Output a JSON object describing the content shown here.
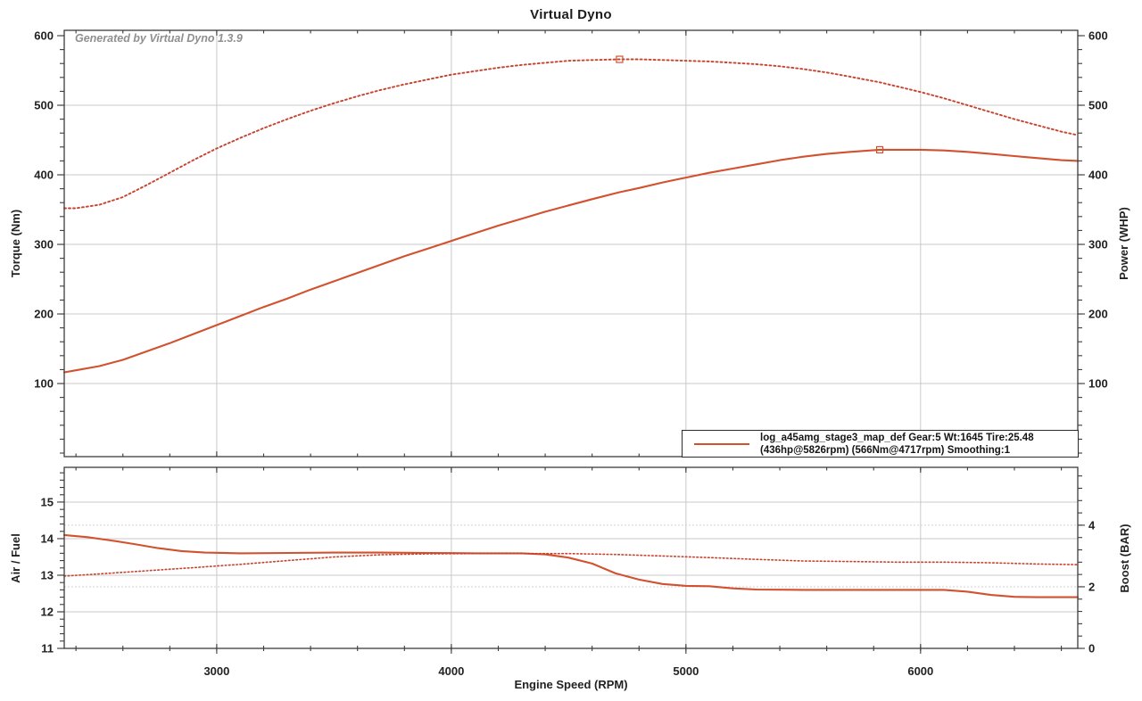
{
  "page": {
    "title": "Virtual Dyno",
    "watermark": "Generated by Virtual Dyno 1.3.9"
  },
  "legend": {
    "line1": "log_a45amg_stage3_map_def Gear:5 Wt:1645 Tire:25.48",
    "line2": "(436hp@5826rpm) (566Nm@4717rpm) Smoothing:1"
  },
  "colors": {
    "solid_line": "#d2512f",
    "dotted_line": "#c8432f",
    "grid": "#c8c8c8",
    "grid_dotted": "#d2d2d2",
    "axis": "#3c3c3c",
    "text": "#222222",
    "watermark": "#8f8f92"
  },
  "chart_data": [
    {
      "type": "line",
      "title": "Virtual Dyno",
      "grid": true,
      "legend_position": "bottom-right-inside",
      "x_axis": {
        "label": "Engine Speed (RPM)",
        "range": [
          2350,
          6670
        ],
        "major_ticks": [
          3000,
          4000,
          5000,
          6000
        ],
        "minor_step": 200
      },
      "y_left": {
        "label": "Torque (Nm)",
        "range": [
          -5.1,
          607.7
        ],
        "major_ticks": [
          100,
          200,
          300,
          400,
          500,
          600
        ],
        "grid_ticks": [
          100,
          200,
          300,
          400,
          500
        ],
        "minor_step": 20
      },
      "y_right": {
        "label": "Power (WHP)",
        "range": [
          -5.1,
          607.7
        ],
        "major_ticks": [
          100,
          200,
          300,
          400,
          500,
          600
        ],
        "minor_step": 20
      },
      "series": [
        {
          "name": "torque-nm",
          "axis": "left",
          "style": "dotted",
          "peak": {
            "rpm": 4717,
            "value": 566,
            "label": "566Nm@4717rpm"
          },
          "points": [
            [
              2350,
              352
            ],
            [
              2400,
              352
            ],
            [
              2500,
              357
            ],
            [
              2600,
              368
            ],
            [
              2700,
              385
            ],
            [
              2800,
              403
            ],
            [
              2900,
              421
            ],
            [
              3000,
              438
            ],
            [
              3100,
              453
            ],
            [
              3200,
              467
            ],
            [
              3300,
              480
            ],
            [
              3400,
              492
            ],
            [
              3500,
              503
            ],
            [
              3600,
              513
            ],
            [
              3700,
              522
            ],
            [
              3800,
              530
            ],
            [
              3900,
              537
            ],
            [
              4000,
              544
            ],
            [
              4100,
              549
            ],
            [
              4200,
              554
            ],
            [
              4300,
              558
            ],
            [
              4400,
              561
            ],
            [
              4500,
              564
            ],
            [
              4600,
              565
            ],
            [
              4717,
              566
            ],
            [
              4800,
              566
            ],
            [
              4900,
              565
            ],
            [
              5000,
              564
            ],
            [
              5100,
              563
            ],
            [
              5200,
              561
            ],
            [
              5300,
              559
            ],
            [
              5400,
              556
            ],
            [
              5500,
              552
            ],
            [
              5600,
              547
            ],
            [
              5700,
              541
            ],
            [
              5826,
              533
            ],
            [
              5900,
              527
            ],
            [
              6000,
              519
            ],
            [
              6100,
              510
            ],
            [
              6200,
              500
            ],
            [
              6300,
              490
            ],
            [
              6400,
              480
            ],
            [
              6500,
              471
            ],
            [
              6600,
              462
            ],
            [
              6670,
              457
            ]
          ]
        },
        {
          "name": "power-whp",
          "axis": "right",
          "style": "solid",
          "peak": {
            "rpm": 5826,
            "value": 436,
            "label": "436hp@5826rpm"
          },
          "points": [
            [
              2350,
              116
            ],
            [
              2400,
              119
            ],
            [
              2500,
              125
            ],
            [
              2600,
              134
            ],
            [
              2700,
              146
            ],
            [
              2800,
              158
            ],
            [
              2900,
              171
            ],
            [
              3000,
              184
            ],
            [
              3100,
              197
            ],
            [
              3200,
              210
            ],
            [
              3300,
              222
            ],
            [
              3400,
              235
            ],
            [
              3500,
              247
            ],
            [
              3600,
              259
            ],
            [
              3700,
              271
            ],
            [
              3800,
              283
            ],
            [
              3900,
              294
            ],
            [
              4000,
              305
            ],
            [
              4100,
              316
            ],
            [
              4200,
              327
            ],
            [
              4300,
              337
            ],
            [
              4400,
              347
            ],
            [
              4500,
              356
            ],
            [
              4600,
              365
            ],
            [
              4717,
              375
            ],
            [
              4800,
              381
            ],
            [
              4900,
              389
            ],
            [
              5000,
              396
            ],
            [
              5100,
              403
            ],
            [
              5200,
              409
            ],
            [
              5300,
              415
            ],
            [
              5400,
              421
            ],
            [
              5500,
              426
            ],
            [
              5600,
              430
            ],
            [
              5700,
              433
            ],
            [
              5826,
              436
            ],
            [
              5900,
              436
            ],
            [
              6000,
              436
            ],
            [
              6100,
              435
            ],
            [
              6200,
              433
            ],
            [
              6300,
              430
            ],
            [
              6400,
              427
            ],
            [
              6500,
              424
            ],
            [
              6600,
              421
            ],
            [
              6670,
              420
            ]
          ]
        }
      ]
    },
    {
      "type": "line",
      "title": "",
      "grid": true,
      "x_axis": {
        "label": "Engine Speed (RPM)",
        "range": [
          2350,
          6670
        ],
        "major_ticks": [
          3000,
          4000,
          5000,
          6000
        ],
        "minor_step": 200
      },
      "y_left": {
        "label": "Air / Fuel",
        "range": [
          11,
          15.95
        ],
        "major_ticks": [
          11,
          12,
          13,
          14,
          15
        ],
        "grid_ticks": [
          12,
          13,
          14,
          15
        ],
        "minor_step": 0.2
      },
      "y_right": {
        "label": "Boost (BAR)",
        "range": [
          0,
          5.88
        ],
        "major_ticks": [
          0,
          2,
          4
        ],
        "grid_ticks_dotted": [
          2,
          4
        ],
        "minor_step": 0.4
      },
      "series": [
        {
          "name": "air-fuel",
          "axis": "left",
          "style": "solid",
          "points": [
            [
              2350,
              14.1
            ],
            [
              2450,
              14.04
            ],
            [
              2550,
              13.95
            ],
            [
              2650,
              13.85
            ],
            [
              2750,
              13.74
            ],
            [
              2850,
              13.66
            ],
            [
              2950,
              13.62
            ],
            [
              3100,
              13.6
            ],
            [
              3300,
              13.61
            ],
            [
              3500,
              13.62
            ],
            [
              3700,
              13.62
            ],
            [
              3900,
              13.61
            ],
            [
              4100,
              13.6
            ],
            [
              4300,
              13.6
            ],
            [
              4400,
              13.57
            ],
            [
              4500,
              13.48
            ],
            [
              4600,
              13.32
            ],
            [
              4700,
              13.05
            ],
            [
              4800,
              12.88
            ],
            [
              4900,
              12.76
            ],
            [
              5000,
              12.71
            ],
            [
              5100,
              12.7
            ],
            [
              5200,
              12.64
            ],
            [
              5300,
              12.61
            ],
            [
              5500,
              12.6
            ],
            [
              5700,
              12.6
            ],
            [
              5900,
              12.6
            ],
            [
              6100,
              12.6
            ],
            [
              6200,
              12.55
            ],
            [
              6300,
              12.46
            ],
            [
              6400,
              12.41
            ],
            [
              6500,
              12.4
            ],
            [
              6600,
              12.4
            ],
            [
              6670,
              12.4
            ]
          ]
        },
        {
          "name": "boost-bar",
          "axis": "right",
          "style": "dotted",
          "points": [
            [
              2350,
              2.35
            ],
            [
              2500,
              2.42
            ],
            [
              2700,
              2.52
            ],
            [
              2900,
              2.62
            ],
            [
              3100,
              2.73
            ],
            [
              3300,
              2.85
            ],
            [
              3500,
              2.97
            ],
            [
              3700,
              3.04
            ],
            [
              3900,
              3.07
            ],
            [
              4100,
              3.08
            ],
            [
              4300,
              3.08
            ],
            [
              4500,
              3.08
            ],
            [
              4700,
              3.05
            ],
            [
              4900,
              3.0
            ],
            [
              5100,
              2.95
            ],
            [
              5300,
              2.89
            ],
            [
              5500,
              2.84
            ],
            [
              5700,
              2.82
            ],
            [
              5900,
              2.8
            ],
            [
              6100,
              2.8
            ],
            [
              6300,
              2.78
            ],
            [
              6500,
              2.74
            ],
            [
              6670,
              2.72
            ]
          ]
        }
      ]
    }
  ]
}
